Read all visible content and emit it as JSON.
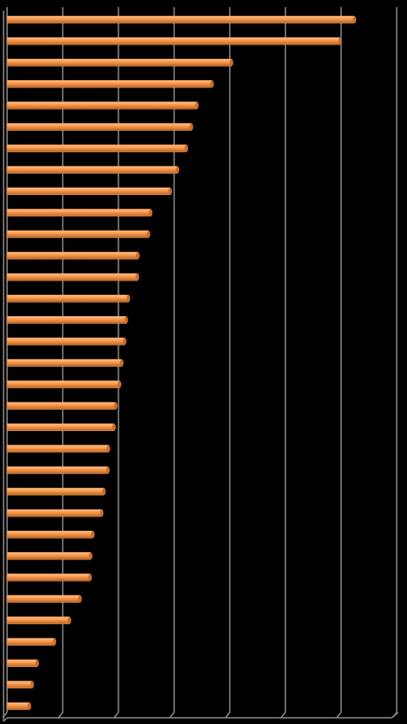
{
  "chart_data": {
    "type": "hbar",
    "categories": [
      null,
      null,
      null,
      null,
      null,
      null,
      null,
      null,
      null,
      null,
      null,
      null,
      null,
      null,
      null,
      null,
      null,
      null,
      null,
      null,
      null,
      null,
      null,
      null,
      null,
      null,
      null,
      null,
      null,
      null,
      null,
      null,
      null
    ],
    "values": [
      6.24,
      5.98,
      4.03,
      3.68,
      3.41,
      3.31,
      3.22,
      3.06,
      2.93,
      2.58,
      2.54,
      2.35,
      2.34,
      2.18,
      2.14,
      2.11,
      2.06,
      2.02,
      1.95,
      1.92,
      1.82,
      1.81,
      1.74,
      1.7,
      1.54,
      1.5,
      1.49,
      1.31,
      1.12,
      0.85,
      0.54,
      0.45,
      0.4
    ],
    "color": "#f79646",
    "xlim": [
      0,
      7
    ],
    "xticks": [
      0,
      1,
      2,
      3,
      4,
      5,
      6,
      7
    ],
    "grid": true
  }
}
